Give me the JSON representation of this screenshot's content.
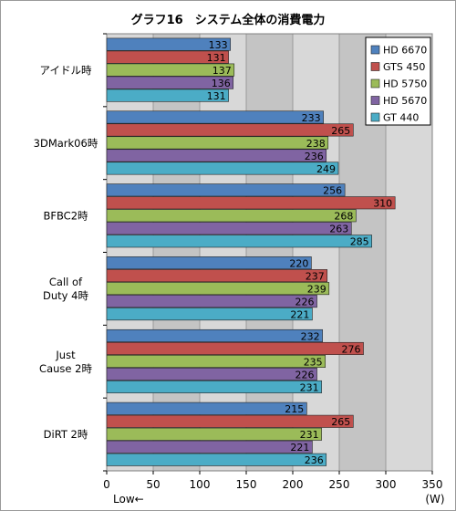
{
  "chart_data": {
    "type": "bar",
    "orientation": "horizontal",
    "title": "グラフ16　システム全体の消費電力",
    "xlabel_left": "Low←",
    "xlabel_right": "(W)",
    "xlim": [
      0,
      350
    ],
    "xticks": [
      0,
      50,
      100,
      150,
      200,
      250,
      300,
      350
    ],
    "grid": true,
    "legend_position": "top-right",
    "categories": [
      [
        "アイドル時"
      ],
      [
        "3DMark06時"
      ],
      [
        "BFBC2時"
      ],
      [
        "Call of",
        "Duty 4時"
      ],
      [
        "Just",
        "Cause 2時"
      ],
      [
        "DiRT 2時"
      ]
    ],
    "series": [
      {
        "name": "HD 6670",
        "color": "#4f81bd",
        "values": [
          133,
          233,
          256,
          220,
          232,
          215
        ]
      },
      {
        "name": "GTS 450",
        "color": "#c0504d",
        "values": [
          131,
          265,
          310,
          237,
          276,
          265
        ]
      },
      {
        "name": "HD 5750",
        "color": "#9bbb59",
        "values": [
          137,
          238,
          268,
          239,
          235,
          231
        ]
      },
      {
        "name": "HD 5670",
        "color": "#8064a2",
        "values": [
          136,
          236,
          263,
          226,
          226,
          221
        ]
      },
      {
        "name": "GT 440",
        "color": "#4bacc6",
        "values": [
          131,
          249,
          285,
          221,
          231,
          236
        ]
      }
    ],
    "colors": {
      "plot_background": "#c0c0c0",
      "band_light": "#d8d8d8",
      "band_dark": "#c4c4c4",
      "gridline": "#9a9a9a"
    }
  }
}
